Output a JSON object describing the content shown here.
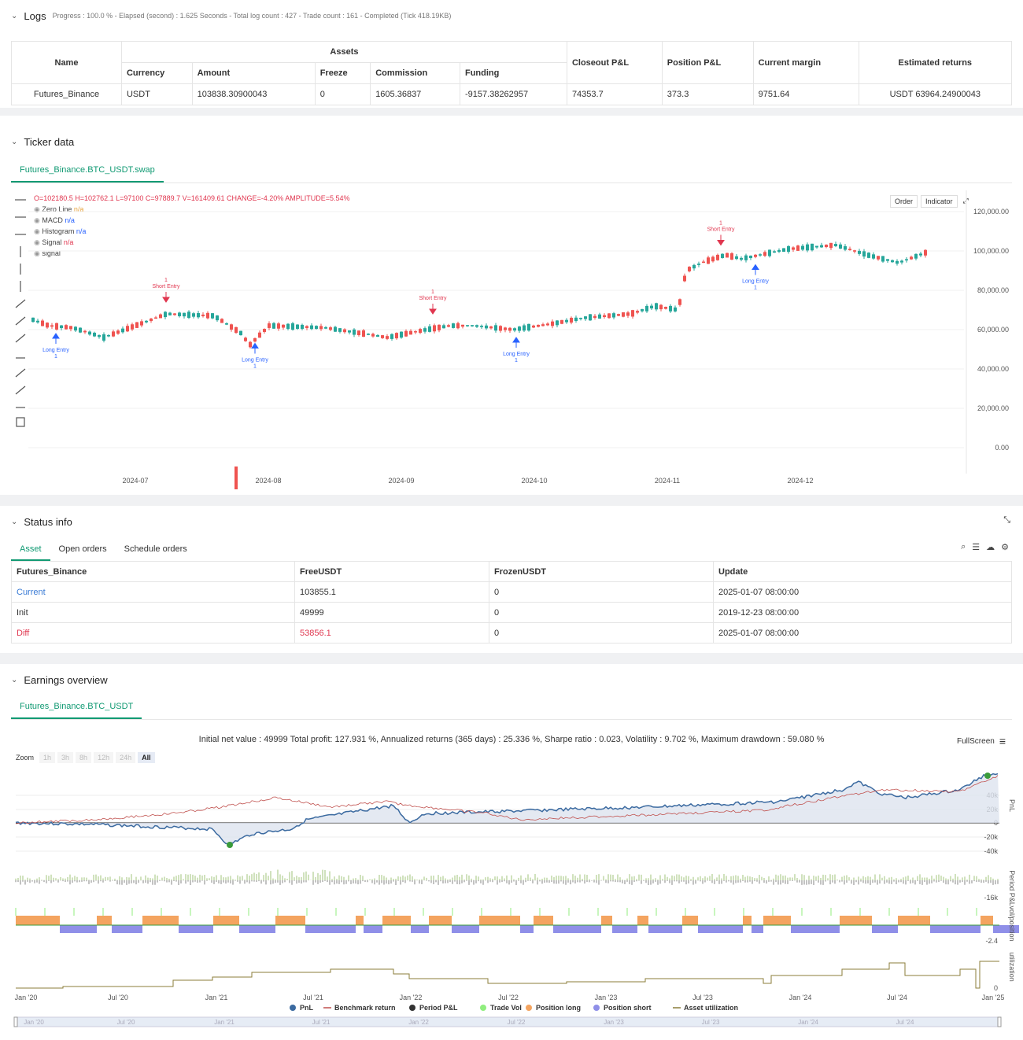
{
  "logs": {
    "title": "Logs",
    "progress": "Progress : 100.0 % - Elapsed (second) : 1.625  Seconds - Total log count : 427 - Trade count : 161 - Completed (Tick 418.19KB)",
    "headers": {
      "name": "Name",
      "assets": "Assets",
      "currency": "Currency",
      "amount": "Amount",
      "freeze": "Freeze",
      "commission": "Commission",
      "funding": "Funding",
      "closeout": "Closeout P&L",
      "position": "Position P&L",
      "margin": "Current margin",
      "returns": "Estimated returns"
    },
    "row": {
      "name": "Futures_Binance",
      "currency": "USDT",
      "amount": "103838.30900043",
      "freeze": "0",
      "commission": "1605.36837",
      "funding": "-9157.38262957",
      "closeout": "74353.7",
      "position": "373.3",
      "margin": "9751.64",
      "returns": "USDT 63964.24900043"
    }
  },
  "ticker": {
    "title": "Ticker data",
    "tab": "Futures_Binance.BTC_USDT.swap",
    "ohlc": "O=102180.5  H=102762.1  L=97100  C=97889.7  V=161409.61  CHANGE=-4.20%  AMPLITUDE=5.54%",
    "legend": [
      {
        "name": "Zero Line",
        "value": "n/a",
        "color": "#e8a33c"
      },
      {
        "name": "MACD",
        "value": "n/a",
        "color": "#2962ff"
      },
      {
        "name": "Histogram",
        "value": "n/a",
        "color": "#2962ff"
      },
      {
        "name": "Signal",
        "value": "n/a",
        "color": "#e0364f"
      },
      {
        "name": "signal",
        "value": "",
        "color": "#444"
      }
    ],
    "buttons": {
      "order": "Order",
      "indicator": "Indicator"
    },
    "price_ticks": [
      "120,000.00",
      "100,000.00",
      "80,000.00",
      "60,000.00",
      "40,000.00",
      "20,000.00",
      "0.00"
    ],
    "dates": [
      "2024-07",
      "2024-08",
      "2024-09",
      "2024-10",
      "2024-11",
      "2024-12"
    ],
    "markers": [
      {
        "type": "long",
        "label": "Long Entry",
        "n": "1"
      },
      {
        "type": "short",
        "label": "Short Entry",
        "n": "1"
      },
      {
        "type": "long",
        "label": "Long Entry",
        "n": "1"
      },
      {
        "type": "short",
        "label": "Short Entry",
        "n": "1"
      },
      {
        "type": "long",
        "label": "Long Entry",
        "n": "1"
      },
      {
        "type": "short",
        "label": "Short Entry",
        "n": "1"
      },
      {
        "type": "long",
        "label": "Long Entry",
        "n": "1"
      }
    ],
    "colors": {
      "up": "#26a69a",
      "down": "#ef5350",
      "long": "#2962ff",
      "short": "#e0364f"
    }
  },
  "status": {
    "title": "Status info",
    "tabs": [
      "Asset",
      "Open orders",
      "Schedule orders"
    ],
    "headers": [
      "Futures_Binance",
      "FreeUSDT",
      "FrozenUSDT",
      "Update"
    ],
    "rows": [
      {
        "label": "Current",
        "free": "103855.1",
        "frozen": "0",
        "update": "2025-01-07 08:00:00"
      },
      {
        "label": "Init",
        "free": "49999",
        "frozen": "0",
        "update": "2019-12-23 08:00:00"
      },
      {
        "label": "Diff",
        "free": "53856.1",
        "frozen": "0",
        "update": "2025-01-07 08:00:00"
      }
    ]
  },
  "earnings": {
    "title": "Earnings overview",
    "tab": "Futures_Binance.BTC_USDT",
    "summary": "Initial net value : 49999  Total profit: 127.931 %, Annualized returns (365 days) : 25.336 %, Sharpe ratio : 0.023, Volatility : 9.702 %, Maximum drawdown : 59.080 %",
    "fullscreen": "FullScreen",
    "zoom_label": "Zoom",
    "zoom_options": [
      "1h",
      "3h",
      "8h",
      "12h",
      "24h",
      "All"
    ],
    "pnl_ticks": [
      "40k",
      "20k",
      "0",
      "-20k",
      "-40k"
    ],
    "period_tick": "-16k",
    "vol_tick": "-2.4",
    "util_tick": "0",
    "axis_titles": [
      "PnL",
      "Period P&L",
      "vol/position",
      "utilization"
    ],
    "x_dates": [
      "Jan '20",
      "Jul '20",
      "Jan '21",
      "Jul '21",
      "Jan '22",
      "Jul '22",
      "Jan '23",
      "Jul '23",
      "Jan '24",
      "Jul '24",
      "Jan '25"
    ],
    "legend": [
      {
        "name": "PnL",
        "color": "#3b6aa0"
      },
      {
        "name": "Benchmark return",
        "color": "#c0504d"
      },
      {
        "name": "Period P&L",
        "color": "#333333"
      },
      {
        "name": "Trade Vol",
        "color": "#90ee7e"
      },
      {
        "name": "Position long",
        "color": "#f4a460"
      },
      {
        "name": "Position short",
        "color": "#8f8fe8"
      },
      {
        "name": "Asset utilization",
        "color": "#8b7d3a"
      }
    ]
  }
}
